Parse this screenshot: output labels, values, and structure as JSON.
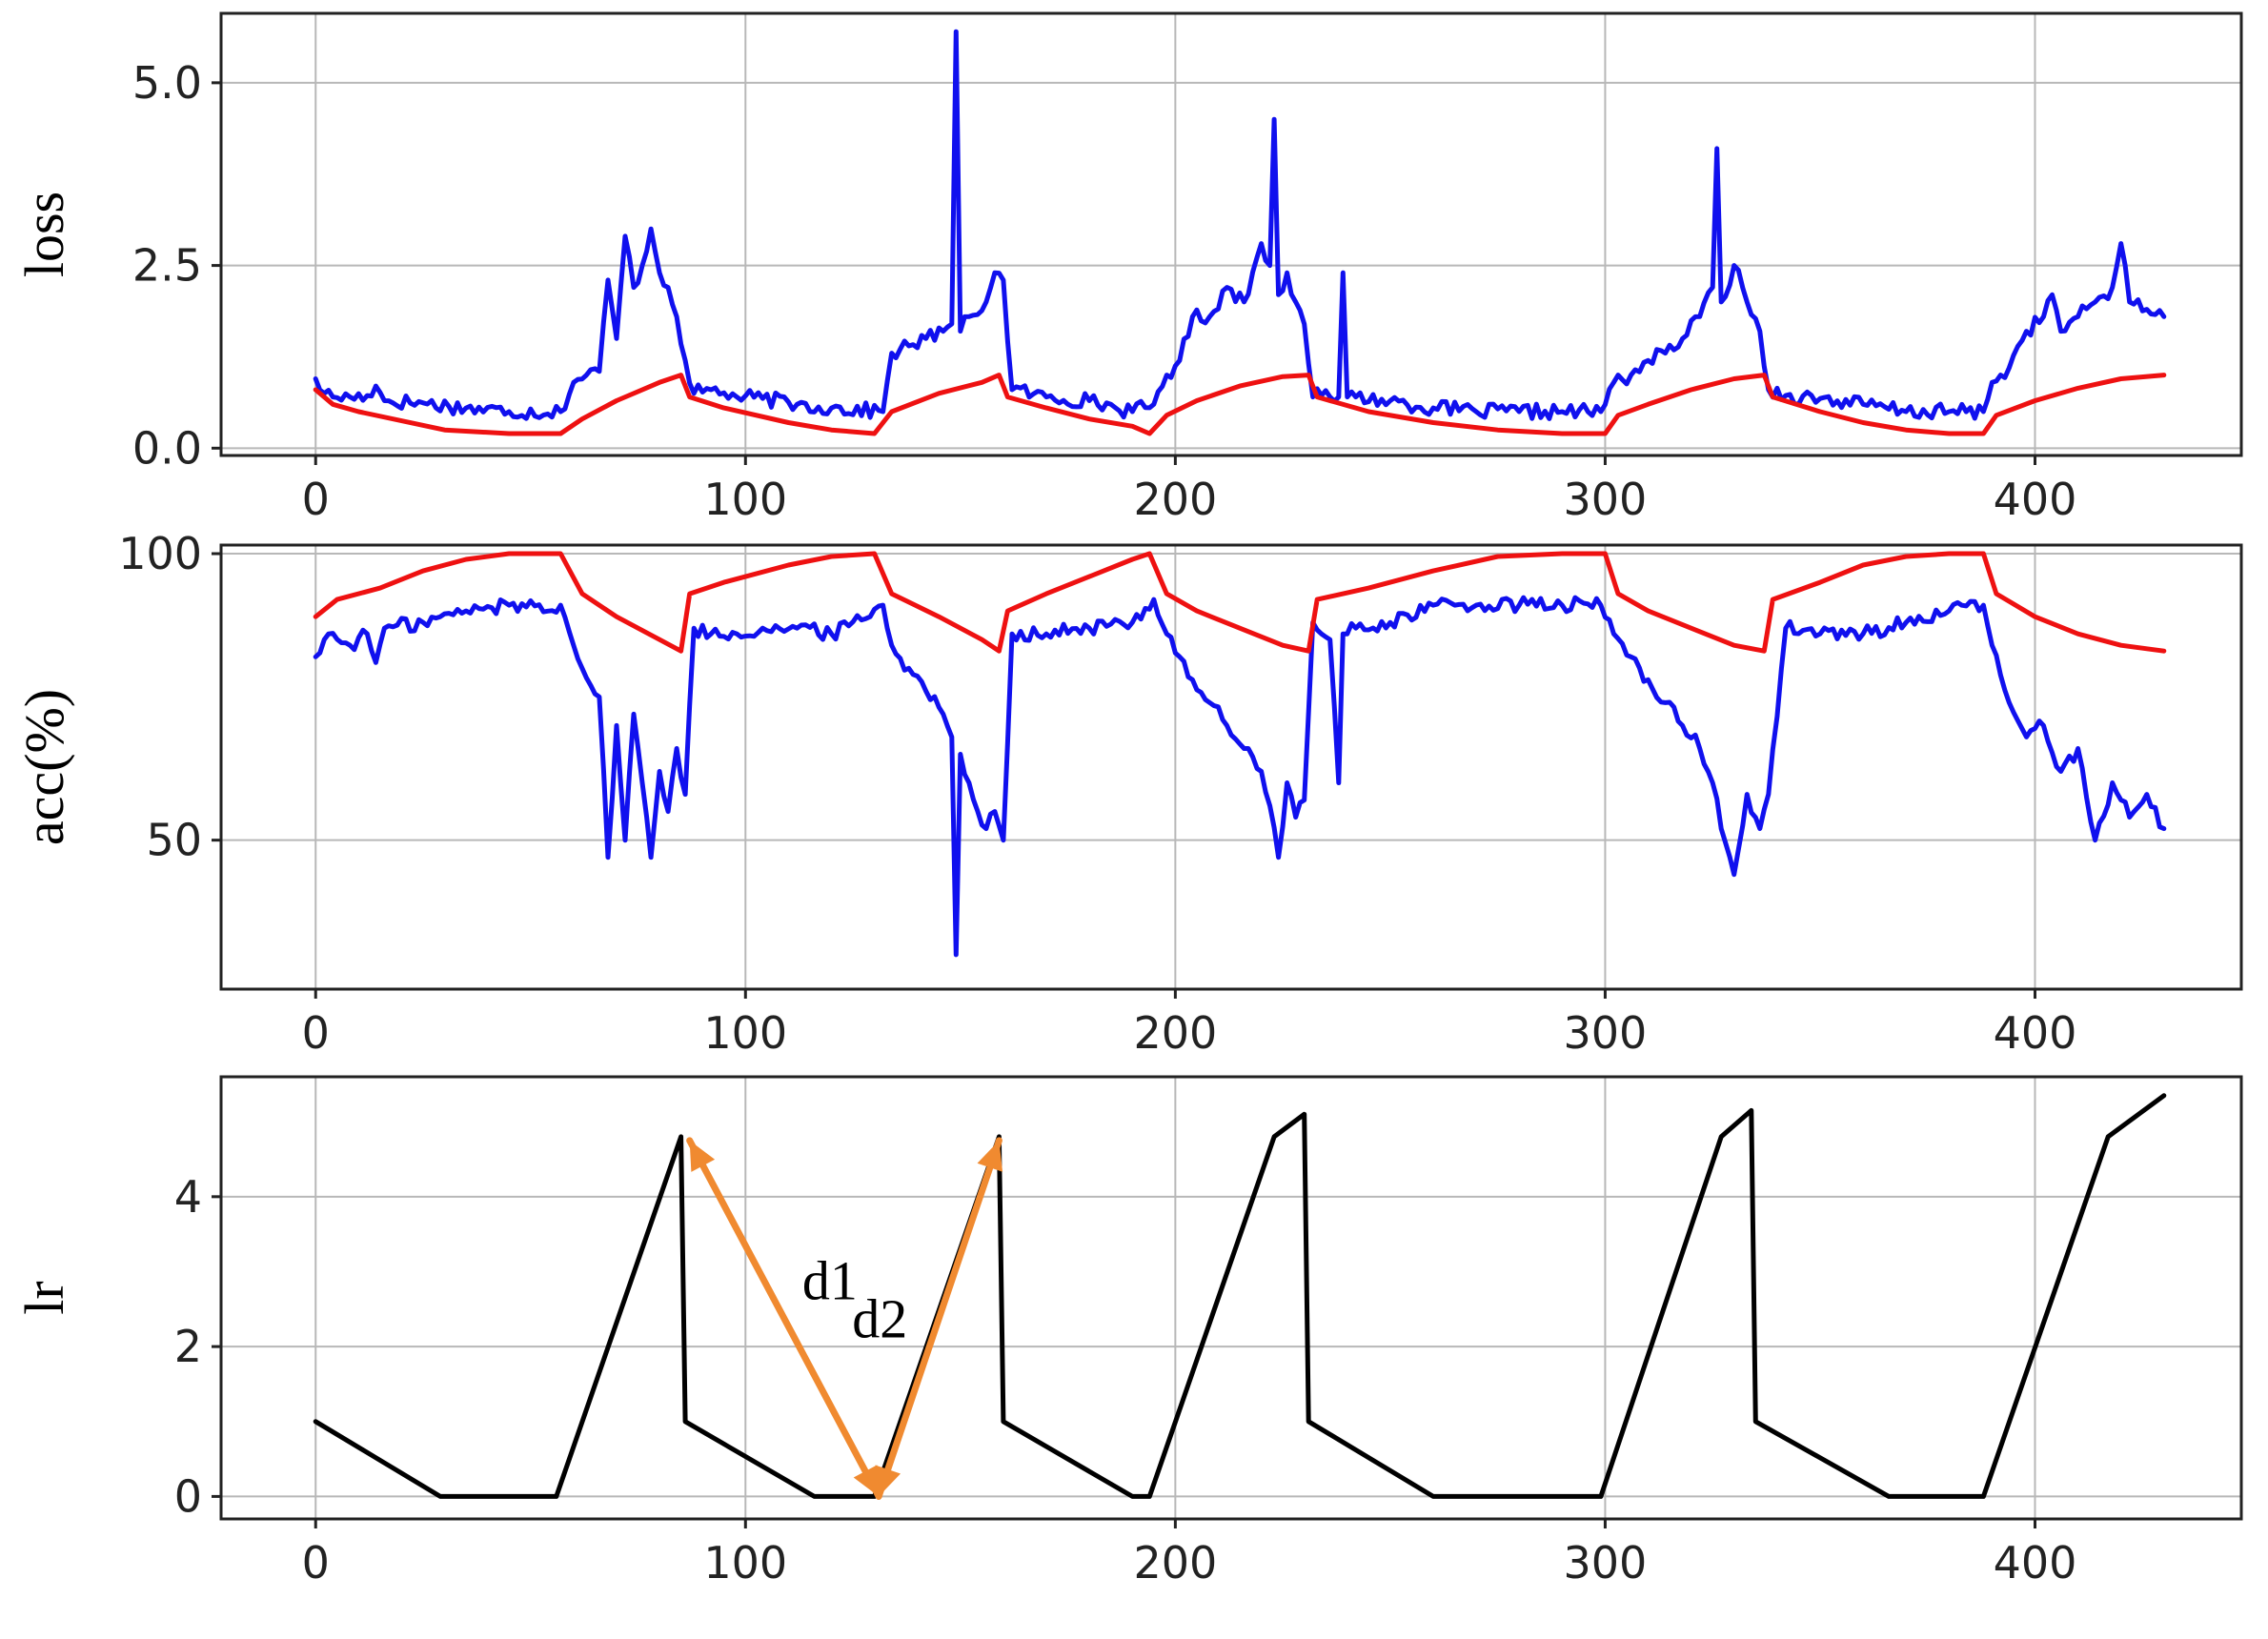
{
  "chart_data": [
    {
      "type": "line",
      "ylabel": "loss",
      "xlim": [
        -22,
        448
      ],
      "ylim": [
        -0.1,
        5.95
      ],
      "xticks": [
        0,
        100,
        200,
        300,
        400
      ],
      "xtick_labels": [
        "0",
        "100",
        "200",
        "300",
        "400"
      ],
      "yticks": [
        0.0,
        2.5,
        5.0
      ],
      "ytick_labels": [
        "0.0",
        "2.5",
        "5.0"
      ],
      "grid": true,
      "series": [
        {
          "color": "#1010ee",
          "style": "noisy",
          "x": [
            0,
            2,
            4,
            8,
            12,
            14,
            16,
            25,
            35,
            45,
            57,
            60,
            63,
            66,
            68,
            70,
            72,
            74,
            76,
            78,
            80,
            82,
            84,
            86,
            88,
            92,
            98,
            104,
            112,
            120,
            132,
            134,
            138,
            142,
            146,
            148,
            149,
            150,
            152,
            156,
            158,
            160,
            162,
            170,
            180,
            190,
            195,
            198,
            201,
            204,
            208,
            212,
            216,
            220,
            222,
            223,
            224,
            226,
            228,
            230,
            232,
            234,
            236,
            238,
            239,
            240,
            242,
            250,
            260,
            270,
            280,
            290,
            299,
            302,
            306,
            310,
            314,
            318,
            322,
            325,
            326,
            327,
            330,
            333,
            336,
            338,
            342,
            350,
            360,
            370,
            380,
            388,
            390,
            394,
            398,
            402,
            404,
            406,
            410,
            414,
            418,
            420,
            422,
            426,
            430
          ],
          "y": [
            0.95,
            0.75,
            0.7,
            0.7,
            0.72,
            0.85,
            0.65,
            0.62,
            0.55,
            0.5,
            0.5,
            0.9,
            1.0,
            1.05,
            2.3,
            1.5,
            2.9,
            2.2,
            2.5,
            3.0,
            2.4,
            2.2,
            1.8,
            1.2,
            0.75,
            0.8,
            0.7,
            0.68,
            0.6,
            0.55,
            0.5,
            1.3,
            1.4,
            1.5,
            1.6,
            1.7,
            5.7,
            1.6,
            1.8,
            2.0,
            2.4,
            2.3,
            0.8,
            0.7,
            0.65,
            0.5,
            0.6,
            1.0,
            1.2,
            1.8,
            1.8,
            2.2,
            2.0,
            2.8,
            2.5,
            4.5,
            2.1,
            2.4,
            2.0,
            1.7,
            0.7,
            0.72,
            0.7,
            0.7,
            2.4,
            0.7,
            0.7,
            0.65,
            0.55,
            0.5,
            0.5,
            0.5,
            0.5,
            0.9,
            1.0,
            1.2,
            1.3,
            1.5,
            1.8,
            2.2,
            4.1,
            2.0,
            2.5,
            2.0,
            1.6,
            0.8,
            0.72,
            0.68,
            0.6,
            0.5,
            0.5,
            0.5,
            0.9,
            1.1,
            1.6,
            1.8,
            2.1,
            1.6,
            1.8,
            2.0,
            2.2,
            2.8,
            2.0,
            1.9,
            1.8
          ]
        },
        {
          "color": "#ee1111",
          "style": "smooth",
          "x": [
            0,
            4,
            10,
            30,
            45,
            57,
            62,
            70,
            80,
            85,
            87,
            95,
            110,
            120,
            130,
            134,
            145,
            155,
            159,
            161,
            170,
            180,
            190,
            194,
            198,
            205,
            215,
            225,
            231,
            233,
            245,
            260,
            275,
            290,
            300,
            303,
            310,
            320,
            330,
            337,
            339,
            350,
            360,
            370,
            380,
            388,
            391,
            400,
            410,
            420,
            430
          ],
          "y": [
            0.8,
            0.6,
            0.5,
            0.25,
            0.2,
            0.2,
            0.4,
            0.65,
            0.9,
            1.0,
            0.7,
            0.55,
            0.35,
            0.25,
            0.2,
            0.5,
            0.75,
            0.9,
            1.0,
            0.7,
            0.55,
            0.4,
            0.3,
            0.2,
            0.45,
            0.65,
            0.85,
            0.98,
            1.0,
            0.7,
            0.5,
            0.35,
            0.25,
            0.2,
            0.2,
            0.45,
            0.6,
            0.8,
            0.95,
            1.0,
            0.7,
            0.5,
            0.35,
            0.25,
            0.2,
            0.2,
            0.45,
            0.65,
            0.82,
            0.95,
            1.0
          ]
        }
      ]
    },
    {
      "type": "line",
      "ylabel": "acc(%)",
      "xlim": [
        -22,
        448
      ],
      "ylim": [
        24,
        101.5
      ],
      "xticks": [
        0,
        100,
        200,
        300,
        400
      ],
      "xtick_labels": [
        "0",
        "100",
        "200",
        "300",
        "400"
      ],
      "yticks": [
        50,
        100
      ],
      "ytick_labels": [
        "50",
        "100"
      ],
      "grid": true,
      "series": [
        {
          "color": "#1010ee",
          "style": "noisy",
          "x": [
            0,
            3,
            8,
            12,
            14,
            16,
            25,
            35,
            45,
            57,
            60,
            62,
            64,
            66,
            68,
            70,
            72,
            74,
            76,
            78,
            80,
            82,
            84,
            86,
            88,
            92,
            98,
            104,
            112,
            120,
            132,
            134,
            138,
            142,
            146,
            148,
            149,
            150,
            152,
            156,
            158,
            160,
            162,
            170,
            180,
            190,
            195,
            198,
            201,
            204,
            208,
            212,
            216,
            220,
            222,
            224,
            226,
            228,
            230,
            232,
            234,
            236,
            238,
            239,
            240,
            242,
            250,
            260,
            270,
            280,
            290,
            299,
            302,
            306,
            310,
            314,
            318,
            322,
            325,
            327,
            330,
            333,
            336,
            338,
            342,
            350,
            360,
            370,
            380,
            388,
            390,
            394,
            398,
            402,
            406,
            410,
            414,
            418,
            422,
            426,
            430
          ],
          "y": [
            82,
            86,
            84,
            86,
            81,
            87,
            88,
            90,
            91,
            91,
            84,
            80,
            77,
            75,
            47,
            70,
            50,
            72,
            60,
            47,
            62,
            55,
            66,
            58,
            87,
            86,
            86,
            87,
            87,
            86,
            91,
            84,
            80,
            76,
            72,
            68,
            30,
            65,
            60,
            52,
            55,
            50,
            86,
            86,
            87,
            88,
            92,
            86,
            82,
            78,
            74,
            70,
            66,
            62,
            56,
            47,
            60,
            54,
            57,
            88,
            86,
            85,
            60,
            86,
            86,
            87,
            88,
            91,
            91,
            91,
            91,
            91,
            86,
            82,
            78,
            74,
            70,
            66,
            60,
            52,
            44,
            58,
            52,
            58,
            87,
            86,
            86,
            88,
            90,
            91,
            84,
            74,
            68,
            70,
            62,
            66,
            50,
            60,
            54,
            58,
            52
          ]
        },
        {
          "color": "#ee1111",
          "style": "smooth",
          "x": [
            0,
            5,
            15,
            25,
            35,
            45,
            57,
            62,
            70,
            80,
            85,
            87,
            95,
            110,
            120,
            130,
            134,
            145,
            155,
            159,
            161,
            170,
            180,
            190,
            194,
            198,
            205,
            215,
            225,
            231,
            233,
            245,
            260,
            275,
            290,
            300,
            303,
            310,
            320,
            330,
            337,
            339,
            350,
            360,
            370,
            380,
            388,
            391,
            400,
            410,
            420,
            430
          ],
          "y": [
            89,
            92,
            94,
            97,
            99,
            100,
            100,
            93,
            89,
            85,
            83,
            93,
            95,
            98,
            99.5,
            100,
            93,
            89,
            85,
            83,
            90,
            93,
            96,
            99,
            100,
            93,
            90,
            87,
            84,
            83,
            92,
            94,
            97,
            99.5,
            100,
            100,
            93,
            90,
            87,
            84,
            83,
            92,
            95,
            98,
            99.5,
            100,
            100,
            93,
            89,
            86,
            84,
            83
          ]
        }
      ]
    },
    {
      "type": "line",
      "ylabel": "lr",
      "xlim": [
        -22,
        448
      ],
      "ylim": [
        -0.3,
        5.6
      ],
      "xticks": [
        0,
        100,
        200,
        300,
        400
      ],
      "xtick_labels": [
        "0",
        "100",
        "200",
        "300",
        "400"
      ],
      "yticks": [
        0,
        2,
        4
      ],
      "ytick_labels": [
        "0",
        "2",
        "4"
      ],
      "grid": true,
      "series": [
        {
          "color": "#000000",
          "style": "line",
          "x": [
            0,
            29,
            56,
            85,
            86,
            116,
            130,
            159,
            160,
            190,
            194,
            223,
            230,
            231,
            260,
            299,
            327,
            334,
            335,
            366,
            388,
            417,
            430
          ],
          "y": [
            1.0,
            0.0,
            0.0,
            4.8,
            1.0,
            0.0,
            0.0,
            4.8,
            1.0,
            0.0,
            0.0,
            4.8,
            5.1,
            1.0,
            0.0,
            0.0,
            4.8,
            5.15,
            1.0,
            0.0,
            0.0,
            4.8,
            5.35
          ]
        }
      ],
      "annotations": [
        {
          "label": "d1",
          "color": "#f08a30",
          "from": [
            131,
            0.0
          ],
          "to": [
            87,
            4.75
          ]
        },
        {
          "label": "d2",
          "color": "#f08a30",
          "from": [
            131,
            0.0
          ],
          "to": [
            159,
            4.75
          ]
        }
      ]
    }
  ]
}
